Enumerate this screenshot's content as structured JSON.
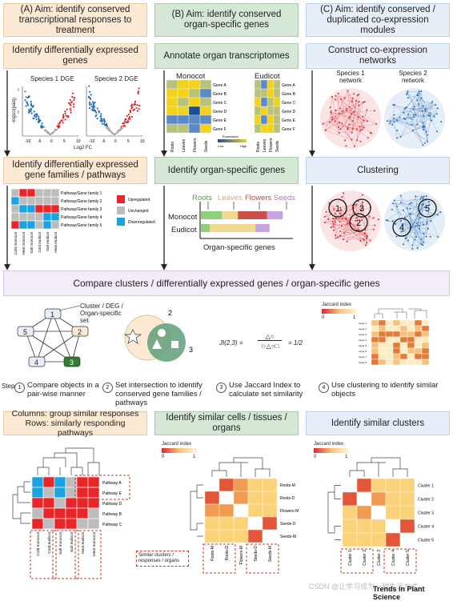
{
  "headers": {
    "a": "(A) Aim: identify conserved transcriptional responses to treatment",
    "b": "(B) Aim: identify conserved organ-specific genes",
    "c": "(C) Aim: identify conserved / duplicated co-expression modules"
  },
  "row2": {
    "a": "Identify differentially expressed genes",
    "b": "Annotate organ transcriptomes",
    "c": "Construct co-expression networks"
  },
  "row3": {
    "a": "Identify differentially expressed gene families / pathways",
    "b": "Identify organ-specific genes",
    "c": "Clustering"
  },
  "dge": {
    "s1": "Species 1 DGE",
    "s2": "Species 2 DGE",
    "ylabel": "-log10(padj)",
    "xlabel": "Log2 FC",
    "ticks": [
      "-10",
      "-5",
      "0",
      "5",
      "10"
    ],
    "yticks": [
      "40",
      "20",
      "0"
    ]
  },
  "organ_heat": {
    "monocot": "Monocot",
    "eudicot": "Eudicot",
    "genes": [
      "Gene A",
      "Gene B",
      "Gene C",
      "Gene D",
      "Gene E",
      "Gene F"
    ],
    "organs": [
      "Roots",
      "Leaves",
      "Flowers",
      "Seeds"
    ],
    "legend_title": "Expression",
    "legend_low": "Low",
    "legend_high": "High",
    "mono_values": [
      [
        2,
        3,
        3,
        2
      ],
      [
        3,
        3,
        2,
        1
      ],
      [
        3,
        2,
        3,
        2
      ],
      [
        3,
        3,
        0,
        3
      ],
      [
        1,
        1,
        1,
        1
      ],
      [
        2,
        2,
        1,
        3
      ]
    ],
    "eu_values": [
      [
        2,
        1,
        3,
        2
      ],
      [
        2,
        2,
        3,
        2
      ],
      [
        3,
        1,
        2,
        3
      ],
      [
        2,
        3,
        2,
        2
      ],
      [
        3,
        1,
        3,
        2
      ],
      [
        2,
        3,
        3,
        2
      ]
    ]
  },
  "networks": {
    "s1": "Species 1 network",
    "s2": "Species 2 network",
    "c1": [
      "1",
      "3",
      "2"
    ],
    "c2": [
      "4",
      "5"
    ]
  },
  "pathway_heat": {
    "rows": [
      "Pathway/Gene family 1",
      "Pathway/Gene family 2",
      "Pathway/Gene family 3",
      "Pathway/Gene family 4",
      "Pathway/Gene family 5"
    ],
    "cols": [
      "Cold monocot",
      "Heat monocot",
      "Salt monocot",
      "Cold eudicot",
      "Salt eudicot",
      "Heat eudicot"
    ],
    "values": [
      [
        0,
        1,
        1,
        0,
        0,
        0
      ],
      [
        2,
        0,
        0,
        0,
        0,
        0
      ],
      [
        0,
        2,
        2,
        1,
        1,
        1
      ],
      [
        0,
        0,
        0,
        0,
        2,
        2
      ],
      [
        1,
        2,
        2,
        0,
        2,
        0
      ]
    ],
    "legend": [
      "Upregulated",
      "Unchanged",
      "Downregulated"
    ]
  },
  "organ_bars": {
    "legend": [
      "Roots",
      "Leaves",
      "Flowers",
      "Seeds"
    ],
    "species": [
      "Monocot",
      "Eudicot"
    ],
    "xlabel": "Organ-specific genes",
    "mono": [
      0.24,
      0.18,
      0.33,
      0.18
    ],
    "eu": [
      0.1,
      0.52,
      0.0,
      0.16
    ]
  },
  "compare": "Compare clusters / differentially expressed genes / organ-specific genes",
  "graph": {
    "nodes": [
      "1",
      "2",
      "3",
      "4",
      "5"
    ],
    "note": "Cluster / DEG / Organ-specific set"
  },
  "venn": {
    "a": "2",
    "b": "3"
  },
  "jaccard_formula": {
    "left": "JI(2,3) =",
    "num": "△○",
    "den": "☆△○□",
    "right": "= 1/2"
  },
  "jaccard_legend": {
    "title": "Jaccard index",
    "min": "0",
    "max": "1"
  },
  "layer_labels": [
    "Layer 1",
    "Layer 2",
    "Layer 3",
    "Layer 4",
    "Layer 5",
    "Layer 6",
    "Layer 7",
    "Layer 8"
  ],
  "steps": {
    "label": "Step",
    "items": [
      {
        "n": "1",
        "text": "Compare objects in a pair-wise manner"
      },
      {
        "n": "2",
        "text": "Set intersection to identify conserved gene families / pathways"
      },
      {
        "n": "3",
        "text": "Use Jaccard Index to calculate set similarity"
      },
      {
        "n": "4",
        "text": "Use clustering to identify similar objects"
      }
    ]
  },
  "bottom_headers": {
    "a": "Columns: group similar responses Rows: similarly responding pathways",
    "b": "Identify similar cells / tissues / organs",
    "c": "Identify similar clusters"
  },
  "bottom_a": {
    "rows": [
      "Pathway A",
      "Pathway E",
      "Pathway D",
      "Pathway B",
      "Pathway C"
    ],
    "cols": [
      "Cold monocot",
      "Cold eudicot",
      "Salt monocot",
      "Salt eudicot",
      "Heat eudicot",
      "Heat monocot"
    ],
    "values": [
      [
        2,
        1,
        2,
        0,
        1,
        1
      ],
      [
        2,
        0,
        2,
        0,
        1,
        1
      ],
      [
        1,
        1,
        0,
        1,
        1,
        1
      ],
      [
        0,
        1,
        1,
        1,
        1,
        0
      ],
      [
        1,
        0,
        1,
        1,
        0,
        0
      ]
    ]
  },
  "bottom_b": {
    "legend_title": "Jaccard index",
    "legend_min": "0",
    "legend_max": "1",
    "labels": [
      "Roots-M",
      "Roots-D",
      "Flowers-M",
      "Seeds-D",
      "Seeds-M"
    ],
    "values": [
      [
        1,
        0.8,
        0.5,
        0.3,
        0.4
      ],
      [
        0.8,
        1,
        0.5,
        0.3,
        0.3
      ],
      [
        0.5,
        0.5,
        1,
        0.4,
        0.3
      ],
      [
        0.3,
        0.3,
        0.4,
        1,
        0.8
      ],
      [
        0.4,
        0.3,
        0.3,
        0.8,
        1
      ]
    ],
    "note": "Similar clusters / responses / organs"
  },
  "bottom_c": {
    "legend_title": "Jaccard index",
    "legend_min": "0",
    "legend_max": "1",
    "labels": [
      "Cluster 1",
      "Cluster 2",
      "Cluster 3",
      "Cluster 4",
      "Cluster 5"
    ],
    "values": [
      [
        1,
        0.8,
        0.4,
        0.3,
        0.3
      ],
      [
        0.8,
        1,
        0.5,
        0.3,
        0.3
      ],
      [
        0.4,
        0.5,
        1,
        0.4,
        0.4
      ],
      [
        0.3,
        0.3,
        0.4,
        1,
        0.85
      ],
      [
        0.3,
        0.3,
        0.4,
        0.85,
        1
      ]
    ]
  },
  "watermark": "CSDN @让学习成为一种生活方式",
  "journal": "Trends in Plant Science",
  "colors": {
    "up": "#e8262a",
    "unchanged": "#bdbdbd",
    "down": "#1ba3e0",
    "red": "#d9282f",
    "blue": "#2a6fb7"
  }
}
